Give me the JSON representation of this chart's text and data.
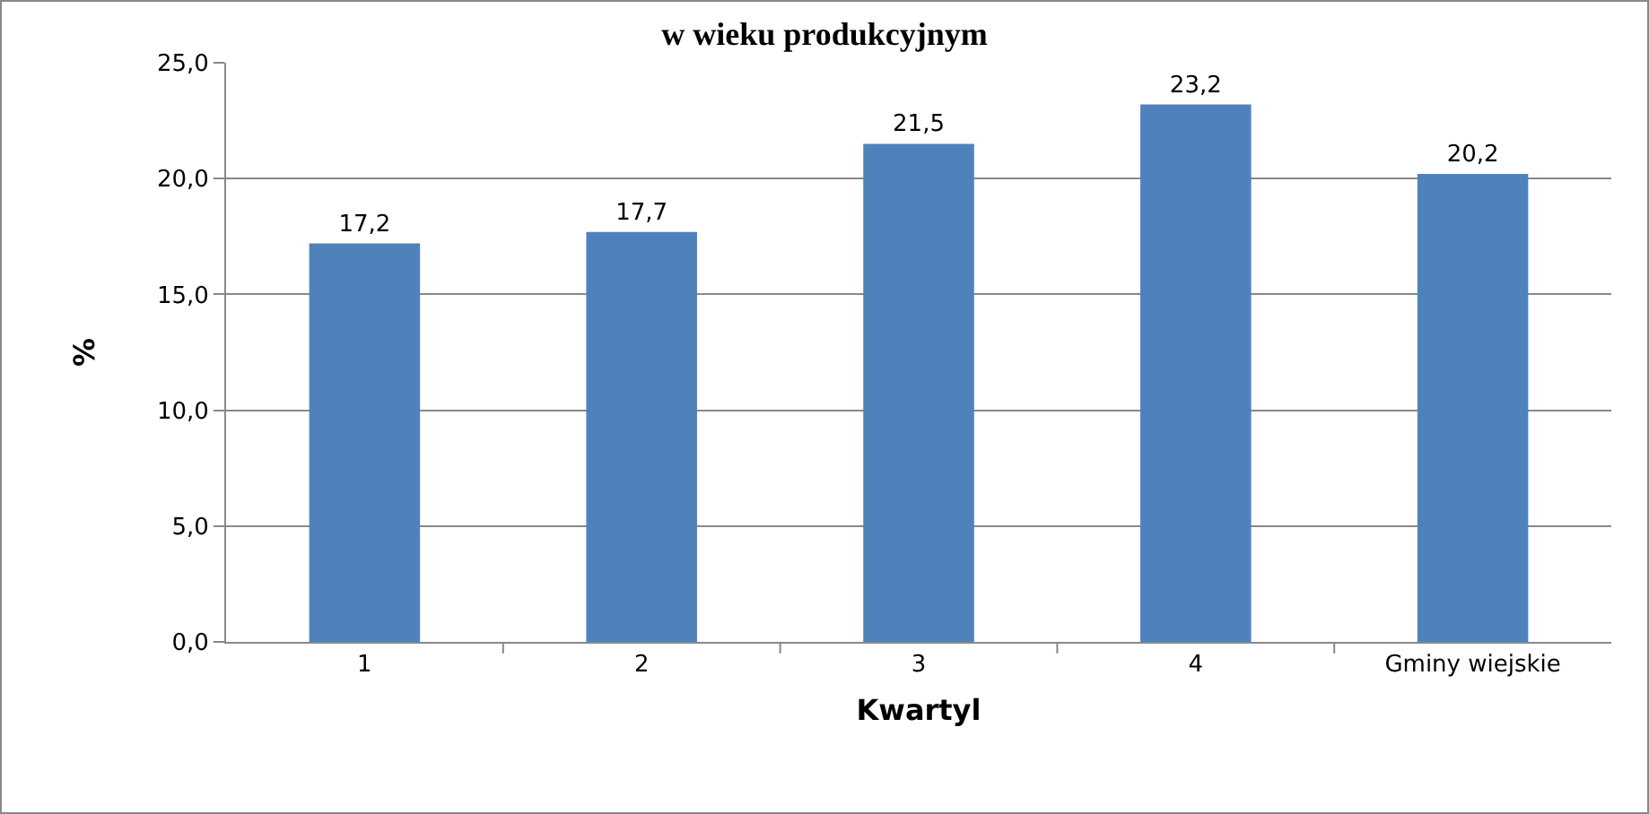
{
  "chart_data": {
    "type": "bar",
    "title": "w wieku produkcyjnym",
    "xlabel": "Kwartyl",
    "ylabel": "%",
    "categories": [
      "1",
      "2",
      "3",
      "4",
      "Gminy wiejskie"
    ],
    "values": [
      17.2,
      17.7,
      21.5,
      23.2,
      20.2
    ],
    "value_labels": [
      "17,2",
      "17,7",
      "21,5",
      "23,2",
      "20,2"
    ],
    "color": "#4f81bd",
    "ylim": [
      0,
      25
    ],
    "yticks": [
      {
        "value": 0,
        "label": "0,0"
      },
      {
        "value": 5,
        "label": "5,0"
      },
      {
        "value": 10,
        "label": "10,0"
      },
      {
        "value": 15,
        "label": "15,0"
      },
      {
        "value": 20,
        "label": "20,0"
      },
      {
        "value": 25,
        "label": "25,0"
      }
    ],
    "grid": "y"
  }
}
